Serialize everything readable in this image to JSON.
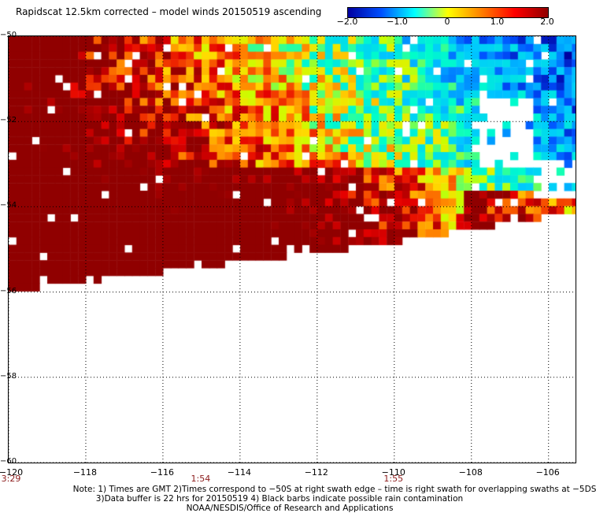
{
  "title": "Rapidscat 12.5km corrected – model winds 20150519 ascending",
  "colorbar": {
    "labels": [
      "−2.0",
      "−1.0",
      "0",
      "1.0",
      "2.0"
    ],
    "values": [
      -2.0,
      -1.0,
      0,
      1.0,
      2.0
    ],
    "stops": [
      "#0000a0",
      "#0050ff",
      "#00ffff",
      "#ffff00",
      "#ff8000",
      "#ff0000",
      "#900000"
    ]
  },
  "lat_labels": [
    "−50",
    "−52",
    "−54",
    "−56",
    "−58",
    "−60"
  ],
  "lat_values": [
    -50,
    -52,
    -54,
    -56,
    -58,
    -60
  ],
  "lon_labels": [
    "−120",
    "−118",
    "−116",
    "−114",
    "−112",
    "−110",
    "−108",
    "−106"
  ],
  "lon_values": [
    -120,
    -118,
    -116,
    -114,
    -112,
    -110,
    -108,
    -106
  ],
  "lon_range": [
    -120,
    -105.3
  ],
  "lat_range": [
    -60,
    -50
  ],
  "times": [
    {
      "label": "3:29",
      "lon": -120
    },
    {
      "label": "1:54",
      "lon": -115
    },
    {
      "label": "1:55",
      "lon": -110
    }
  ],
  "notes": [
    "Note: 1) Times are GMT 2)Times correspond to −50S at right swath edge – time is right swath for overlapping swaths at −5DS",
    "3)Data buffer is 22 hrs for 20150519 4) Black barbs indicate possible rain contamination",
    "NOAA/NESDIS/Office of Research and Applications"
  ]
}
